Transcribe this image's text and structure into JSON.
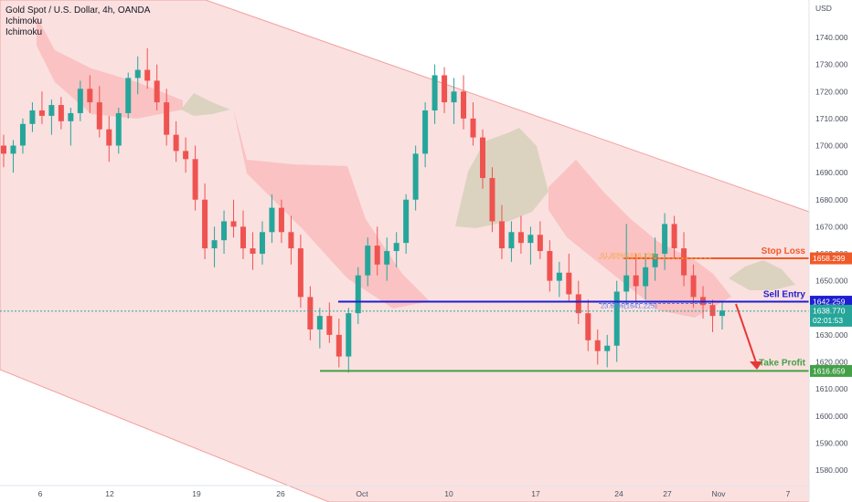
{
  "header": {
    "title": "Gold Spot / U.S. Dollar, 4h, OANDA",
    "indicators": [
      "Ichimoku",
      "Ichimoku"
    ],
    "currency": "USD"
  },
  "chart_data": {
    "type": "candlestick",
    "title": "Gold Spot / U.S. Dollar, 4h, OANDA",
    "y_ticks": [
      1580,
      1590,
      1600,
      1610,
      1620,
      1630,
      1640,
      1650,
      1660,
      1670,
      1680,
      1690,
      1700,
      1710,
      1720,
      1730,
      1740
    ],
    "x_ticks": [
      "6",
      "12",
      "19",
      "26",
      "Oct",
      "10",
      "17",
      "24",
      "27",
      "Nov",
      "7"
    ],
    "ylim": [
      1575,
      1750
    ],
    "grid": false,
    "levels": [
      {
        "name": "Stop Loss",
        "value": 1658.299,
        "color": "#f05a28",
        "badge": "1658.299"
      },
      {
        "name": "Sell Entry",
        "value": 1642.259,
        "color": "#1e1ed2",
        "badge": "1642.259"
      },
      {
        "name": "Take Profit",
        "value": 1616.659,
        "color": "#43a047",
        "badge": "1616.659"
      }
    ],
    "current_price": {
      "value": 1638.77,
      "label": "1638.770",
      "countdown": "02:01:53",
      "color": "#26a69a"
    },
    "fib_labels": [
      "61.80%(1658.299)",
      "23.60%(1641.225)"
    ],
    "candles_ohlc": [
      [
        1700,
        1704,
        1692,
        1697
      ],
      [
        1697,
        1702,
        1690,
        1700
      ],
      [
        1700,
        1710,
        1697,
        1708
      ],
      [
        1708,
        1716,
        1705,
        1713
      ],
      [
        1713,
        1720,
        1708,
        1711
      ],
      [
        1711,
        1717,
        1704,
        1715
      ],
      [
        1715,
        1718,
        1706,
        1709
      ],
      [
        1709,
        1714,
        1700,
        1712
      ],
      [
        1712,
        1724,
        1709,
        1721
      ],
      [
        1721,
        1726,
        1712,
        1716
      ],
      [
        1716,
        1722,
        1703,
        1706
      ],
      [
        1706,
        1711,
        1694,
        1700
      ],
      [
        1700,
        1714,
        1697,
        1712
      ],
      [
        1712,
        1727,
        1710,
        1725
      ],
      [
        1725,
        1733,
        1719,
        1728
      ],
      [
        1728,
        1736,
        1721,
        1724
      ],
      [
        1724,
        1730,
        1713,
        1716
      ],
      [
        1716,
        1721,
        1700,
        1704
      ],
      [
        1704,
        1709,
        1694,
        1698
      ],
      [
        1698,
        1703,
        1690,
        1695
      ],
      [
        1695,
        1700,
        1676,
        1680
      ],
      [
        1680,
        1686,
        1658,
        1662
      ],
      [
        1662,
        1670,
        1655,
        1665
      ],
      [
        1665,
        1676,
        1660,
        1672
      ],
      [
        1672,
        1680,
        1666,
        1670
      ],
      [
        1670,
        1676,
        1658,
        1662
      ],
      [
        1662,
        1668,
        1654,
        1660
      ],
      [
        1660,
        1672,
        1656,
        1668
      ],
      [
        1668,
        1682,
        1664,
        1677
      ],
      [
        1677,
        1680,
        1664,
        1668
      ],
      [
        1668,
        1674,
        1656,
        1662
      ],
      [
        1662,
        1667,
        1640,
        1644
      ],
      [
        1644,
        1648,
        1628,
        1632
      ],
      [
        1632,
        1640,
        1625,
        1637
      ],
      [
        1637,
        1642,
        1627,
        1630
      ],
      [
        1630,
        1636,
        1618,
        1622
      ],
      [
        1622,
        1640,
        1616,
        1638
      ],
      [
        1638,
        1655,
        1634,
        1652
      ],
      [
        1652,
        1666,
        1648,
        1663
      ],
      [
        1663,
        1670,
        1652,
        1656
      ],
      [
        1656,
        1666,
        1650,
        1661
      ],
      [
        1661,
        1668,
        1655,
        1664
      ],
      [
        1664,
        1682,
        1660,
        1680
      ],
      [
        1680,
        1700,
        1676,
        1697
      ],
      [
        1697,
        1716,
        1692,
        1713
      ],
      [
        1713,
        1730,
        1708,
        1726
      ],
      [
        1726,
        1729,
        1712,
        1716
      ],
      [
        1716,
        1725,
        1708,
        1720
      ],
      [
        1720,
        1726,
        1706,
        1710
      ],
      [
        1710,
        1716,
        1700,
        1703
      ],
      [
        1703,
        1706,
        1684,
        1688
      ],
      [
        1688,
        1692,
        1668,
        1672
      ],
      [
        1672,
        1678,
        1658,
        1662
      ],
      [
        1662,
        1672,
        1657,
        1668
      ],
      [
        1668,
        1674,
        1660,
        1664
      ],
      [
        1664,
        1670,
        1656,
        1667
      ],
      [
        1667,
        1672,
        1658,
        1661
      ],
      [
        1661,
        1665,
        1646,
        1650
      ],
      [
        1650,
        1657,
        1644,
        1653
      ],
      [
        1653,
        1660,
        1642,
        1645
      ],
      [
        1645,
        1650,
        1634,
        1638
      ],
      [
        1638,
        1643,
        1624,
        1628
      ],
      [
        1628,
        1632,
        1619,
        1624
      ],
      [
        1624,
        1630,
        1618,
        1626
      ],
      [
        1626,
        1650,
        1620,
        1646
      ],
      [
        1646,
        1671,
        1641,
        1652
      ],
      [
        1652,
        1660,
        1642,
        1648
      ],
      [
        1648,
        1660,
        1643,
        1655
      ],
      [
        1655,
        1666,
        1650,
        1660
      ],
      [
        1660,
        1675,
        1654,
        1671
      ],
      [
        1671,
        1674,
        1658,
        1662
      ],
      [
        1662,
        1668,
        1648,
        1652
      ],
      [
        1652,
        1656,
        1640,
        1644
      ],
      [
        1644,
        1648,
        1636,
        1641
      ],
      [
        1641,
        1643,
        1631,
        1637
      ],
      [
        1637,
        1642,
        1632,
        1639
      ]
    ]
  }
}
